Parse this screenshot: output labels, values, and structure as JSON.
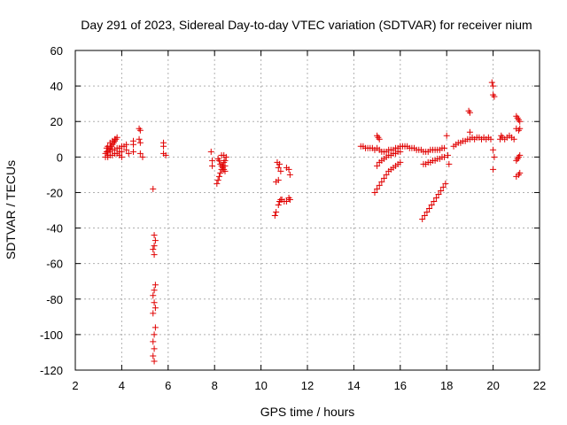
{
  "chart_data": {
    "type": "scatter",
    "title": "Day 291 of 2023, Sidereal Day-to-day VTEC variation (SDTVAR) for receiver nium",
    "xlabel": "GPS time / hours",
    "ylabel": "SDTVAR / TECUs",
    "xlim": [
      2,
      22
    ],
    "ylim": [
      -120,
      60
    ],
    "xticks": [
      2,
      4,
      6,
      8,
      10,
      12,
      14,
      16,
      18,
      20,
      22
    ],
    "yticks": [
      60,
      40,
      20,
      0,
      -20,
      -40,
      -60,
      -80,
      -100,
      -120
    ],
    "grid": true,
    "marker": "+",
    "color": "#e00000",
    "series": [
      {
        "name": "SDTVAR",
        "points": [
          [
            3.3,
            2
          ],
          [
            3.35,
            3
          ],
          [
            3.4,
            1
          ],
          [
            3.45,
            4
          ],
          [
            3.5,
            5
          ],
          [
            3.55,
            6
          ],
          [
            3.6,
            7
          ],
          [
            3.65,
            8
          ],
          [
            3.7,
            9
          ],
          [
            3.75,
            10
          ],
          [
            3.8,
            11
          ],
          [
            3.35,
            5
          ],
          [
            3.4,
            6
          ],
          [
            3.5,
            8
          ],
          [
            3.6,
            9
          ],
          [
            3.7,
            10
          ],
          [
            3.3,
            0
          ],
          [
            3.4,
            0
          ],
          [
            3.5,
            1
          ],
          [
            3.6,
            1
          ],
          [
            3.7,
            2
          ],
          [
            3.8,
            2
          ],
          [
            3.9,
            3
          ],
          [
            4.0,
            3
          ],
          [
            3.4,
            3
          ],
          [
            3.5,
            3
          ],
          [
            3.6,
            4
          ],
          [
            3.7,
            4
          ],
          [
            3.8,
            5
          ],
          [
            3.9,
            5
          ],
          [
            4.0,
            6
          ],
          [
            4.1,
            6
          ],
          [
            3.9,
            1
          ],
          [
            4.0,
            0
          ],
          [
            4.2,
            4
          ],
          [
            4.2,
            7
          ],
          [
            4.3,
            2
          ],
          [
            4.5,
            3
          ],
          [
            4.5,
            7
          ],
          [
            4.5,
            9
          ],
          [
            4.75,
            16
          ],
          [
            4.8,
            15
          ],
          [
            4.75,
            10
          ],
          [
            4.8,
            8
          ],
          [
            4.8,
            2
          ],
          [
            4.9,
            0
          ],
          [
            5.35,
            -18
          ],
          [
            5.4,
            -44
          ],
          [
            5.45,
            -47
          ],
          [
            5.4,
            -50
          ],
          [
            5.35,
            -52
          ],
          [
            5.4,
            -55
          ],
          [
            5.45,
            -72
          ],
          [
            5.4,
            -75
          ],
          [
            5.35,
            -78
          ],
          [
            5.4,
            -82
          ],
          [
            5.45,
            -85
          ],
          [
            5.35,
            -88
          ],
          [
            5.45,
            -96
          ],
          [
            5.4,
            -100
          ],
          [
            5.35,
            -104
          ],
          [
            5.4,
            -108
          ],
          [
            5.35,
            -112
          ],
          [
            5.4,
            -115
          ],
          [
            5.8,
            8
          ],
          [
            5.8,
            6
          ],
          [
            5.8,
            2
          ],
          [
            5.9,
            1
          ],
          [
            7.85,
            3
          ],
          [
            7.9,
            -2
          ],
          [
            7.9,
            -5
          ],
          [
            8.1,
            -15
          ],
          [
            8.15,
            -13
          ],
          [
            8.2,
            -11
          ],
          [
            8.25,
            -9
          ],
          [
            8.3,
            -7
          ],
          [
            8.35,
            -5
          ],
          [
            8.4,
            -3
          ],
          [
            8.45,
            -2
          ],
          [
            8.15,
            -1
          ],
          [
            8.2,
            -2
          ],
          [
            8.25,
            -4
          ],
          [
            8.3,
            -5
          ],
          [
            8.35,
            -6
          ],
          [
            8.4,
            -7
          ],
          [
            8.45,
            -8
          ],
          [
            8.3,
            1
          ],
          [
            8.4,
            1
          ],
          [
            8.5,
            0
          ],
          [
            8.45,
            -5
          ],
          [
            10.65,
            -14
          ],
          [
            10.75,
            -13
          ],
          [
            10.7,
            -3
          ],
          [
            10.8,
            -4
          ],
          [
            10.75,
            -6
          ],
          [
            10.85,
            -8
          ],
          [
            10.6,
            -33
          ],
          [
            10.65,
            -31
          ],
          [
            10.75,
            -27
          ],
          [
            10.8,
            -25
          ],
          [
            10.85,
            -24
          ],
          [
            10.9,
            -24
          ],
          [
            11.0,
            -25
          ],
          [
            11.1,
            -25
          ],
          [
            11.2,
            -23
          ],
          [
            11.25,
            -24
          ],
          [
            11.1,
            -6
          ],
          [
            11.2,
            -7
          ],
          [
            11.25,
            -10
          ],
          [
            14.3,
            6
          ],
          [
            14.4,
            6
          ],
          [
            14.5,
            5
          ],
          [
            14.6,
            5
          ],
          [
            14.7,
            5
          ],
          [
            14.8,
            5
          ],
          [
            14.9,
            4
          ],
          [
            15.0,
            5
          ],
          [
            14.9,
            -20
          ],
          [
            15.0,
            -18
          ],
          [
            15.1,
            -16
          ],
          [
            15.2,
            -14
          ],
          [
            15.3,
            -12
          ],
          [
            15.4,
            -10
          ],
          [
            15.5,
            -8
          ],
          [
            15.6,
            -7
          ],
          [
            15.7,
            -6
          ],
          [
            15.8,
            -5
          ],
          [
            15.9,
            -4
          ],
          [
            16.0,
            -3
          ],
          [
            15.0,
            -5
          ],
          [
            15.1,
            -3
          ],
          [
            15.2,
            -2
          ],
          [
            15.3,
            -1
          ],
          [
            15.4,
            0
          ],
          [
            15.5,
            1
          ],
          [
            15.6,
            1
          ],
          [
            15.7,
            2
          ],
          [
            15.8,
            2
          ],
          [
            15.9,
            3
          ],
          [
            16.0,
            3
          ],
          [
            15.0,
            12
          ],
          [
            15.05,
            11
          ],
          [
            15.1,
            10
          ],
          [
            15.1,
            4
          ],
          [
            15.2,
            3
          ],
          [
            15.3,
            3
          ],
          [
            15.4,
            3
          ],
          [
            15.5,
            4
          ],
          [
            15.6,
            4
          ],
          [
            15.7,
            4
          ],
          [
            15.8,
            5
          ],
          [
            15.9,
            5
          ],
          [
            16.0,
            6
          ],
          [
            16.1,
            6
          ],
          [
            16.2,
            6
          ],
          [
            16.3,
            6
          ],
          [
            16.4,
            5
          ],
          [
            16.5,
            5
          ],
          [
            16.6,
            5
          ],
          [
            16.7,
            4
          ],
          [
            16.8,
            4
          ],
          [
            16.9,
            4
          ],
          [
            17.0,
            3
          ],
          [
            17.1,
            3
          ],
          [
            17.2,
            3
          ],
          [
            17.3,
            4
          ],
          [
            17.4,
            4
          ],
          [
            17.5,
            4
          ],
          [
            17.6,
            4
          ],
          [
            17.7,
            4
          ],
          [
            17.8,
            5
          ],
          [
            17.9,
            5
          ],
          [
            16.95,
            -35
          ],
          [
            17.05,
            -33
          ],
          [
            17.15,
            -31
          ],
          [
            17.25,
            -29
          ],
          [
            17.35,
            -27
          ],
          [
            17.45,
            -25
          ],
          [
            17.55,
            -23
          ],
          [
            17.65,
            -21
          ],
          [
            17.75,
            -19
          ],
          [
            17.85,
            -17
          ],
          [
            17.95,
            -15
          ],
          [
            17.0,
            -4
          ],
          [
            17.1,
            -4
          ],
          [
            17.2,
            -3
          ],
          [
            17.3,
            -3
          ],
          [
            17.4,
            -2
          ],
          [
            17.5,
            -2
          ],
          [
            17.6,
            -1
          ],
          [
            17.7,
            -1
          ],
          [
            17.8,
            0
          ],
          [
            17.9,
            0
          ],
          [
            18.0,
            12
          ],
          [
            18.05,
            1
          ],
          [
            18.1,
            -4
          ],
          [
            18.3,
            6
          ],
          [
            18.4,
            7
          ],
          [
            18.5,
            8
          ],
          [
            18.6,
            8
          ],
          [
            18.7,
            9
          ],
          [
            18.8,
            9
          ],
          [
            18.9,
            10
          ],
          [
            19.0,
            10
          ],
          [
            18.95,
            26
          ],
          [
            19.0,
            25
          ],
          [
            19.0,
            14
          ],
          [
            19.1,
            11
          ],
          [
            19.2,
            10
          ],
          [
            19.3,
            11
          ],
          [
            19.4,
            11
          ],
          [
            19.5,
            10
          ],
          [
            19.6,
            11
          ],
          [
            19.7,
            10
          ],
          [
            19.8,
            11
          ],
          [
            19.9,
            10
          ],
          [
            19.95,
            42
          ],
          [
            20.0,
            40
          ],
          [
            20.0,
            35
          ],
          [
            20.05,
            34
          ],
          [
            20.0,
            4
          ],
          [
            20.05,
            0
          ],
          [
            20.0,
            -7
          ],
          [
            20.3,
            10
          ],
          [
            20.35,
            12
          ],
          [
            20.4,
            11
          ],
          [
            20.5,
            10
          ],
          [
            20.6,
            11
          ],
          [
            20.7,
            12
          ],
          [
            20.8,
            11
          ],
          [
            20.9,
            10
          ],
          [
            21.0,
            23
          ],
          [
            21.05,
            22
          ],
          [
            21.1,
            21
          ],
          [
            21.15,
            20
          ],
          [
            21.0,
            16
          ],
          [
            21.1,
            15
          ],
          [
            21.15,
            16
          ],
          [
            21.0,
            -2
          ],
          [
            21.05,
            -1
          ],
          [
            21.1,
            0
          ],
          [
            21.15,
            1
          ],
          [
            21.0,
            -11
          ],
          [
            21.1,
            -10
          ],
          [
            21.15,
            -9
          ]
        ]
      }
    ]
  }
}
